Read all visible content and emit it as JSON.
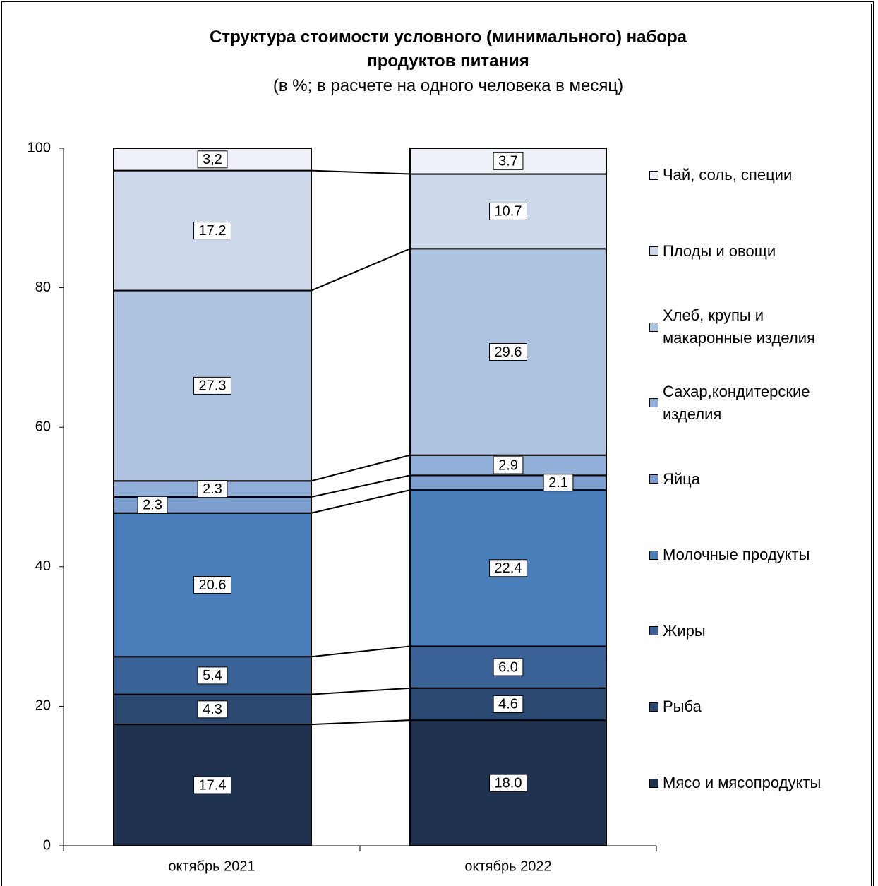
{
  "chart_data": {
    "type": "stacked-bar",
    "title": "Структура стоимости условного (минимального) набора продуктов питания",
    "subtitle": "(в %; в расчете на одного человека в месяц)",
    "categories": [
      "октябрь 2021",
      "октябрь 2022"
    ],
    "ylim": [
      0,
      100
    ],
    "yticks": [
      0,
      20,
      40,
      60,
      80,
      100
    ],
    "legend": "right",
    "series": [
      {
        "name": "Мясо и мясопродукты",
        "color": "#1f3350",
        "values": [
          17.4,
          18.0
        ],
        "value_labels": [
          "17.4",
          "18.0"
        ]
      },
      {
        "name": "Рыба",
        "color": "#2a4870",
        "values": [
          4.3,
          4.6
        ],
        "value_labels": [
          "4.3",
          "4.6"
        ]
      },
      {
        "name": "Жиры",
        "color": "#3a6296",
        "values": [
          5.4,
          6.0
        ],
        "value_labels": [
          "5.4",
          "6.0"
        ]
      },
      {
        "name": "Молочные продукты",
        "color": "#4a7ebb",
        "values": [
          20.6,
          22.4
        ],
        "value_labels": [
          "20.6",
          "22.4"
        ]
      },
      {
        "name": "Яйца",
        "color": "#7c9fcf",
        "values": [
          2.3,
          2.1
        ],
        "value_labels": [
          "2.3",
          "2.1"
        ]
      },
      {
        "name": "Сахар,кондитерские изделия",
        "color": "#91afd8",
        "values": [
          2.3,
          2.9
        ],
        "value_labels": [
          "2.3",
          "2.9"
        ]
      },
      {
        "name": "Хлеб, крупы и макаронные изделия",
        "color": "#adc3df",
        "values": [
          27.3,
          29.6
        ],
        "value_labels": [
          "27.3",
          "29.6"
        ]
      },
      {
        "name": "Плоды и овощи",
        "color": "#cdd9ea",
        "values": [
          17.2,
          10.7
        ],
        "value_labels": [
          "17.2",
          "10.7"
        ]
      },
      {
        "name": "Чай, соль, специи",
        "color": "#eef2f8",
        "values": [
          3.2,
          3.7
        ],
        "value_labels": [
          "3,2",
          "3.7"
        ]
      }
    ]
  }
}
